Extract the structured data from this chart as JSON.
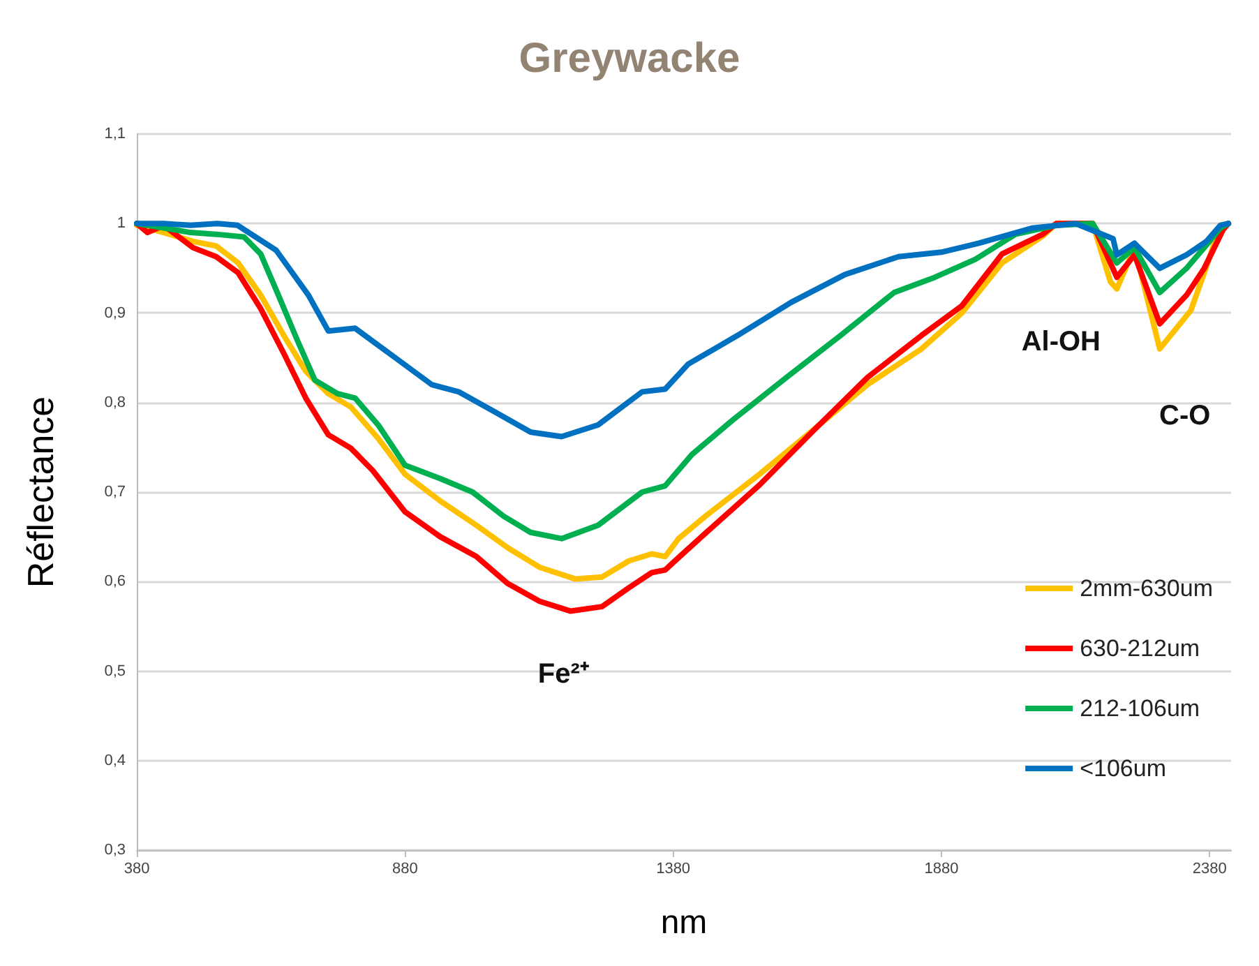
{
  "chart_data": {
    "type": "line",
    "title": "Greywacke",
    "xlabel": "nm",
    "ylabel": "Réflectance",
    "xlim": [
      380,
      2420
    ],
    "xticks": [
      380,
      880,
      1380,
      1880,
      2380
    ],
    "ylim": [
      0.3,
      1.1
    ],
    "yticks": [
      {
        "value": 0.3,
        "label": "0,3"
      },
      {
        "value": 0.4,
        "label": "0,4"
      },
      {
        "value": 0.5,
        "label": "0,5"
      },
      {
        "value": 0.6,
        "label": "0,6"
      },
      {
        "value": 0.7,
        "label": "0,7"
      },
      {
        "value": 0.8,
        "label": "0,8"
      },
      {
        "value": 0.9,
        "label": "0,9"
      },
      {
        "value": 1,
        "label": "1"
      },
      {
        "value": 1.1,
        "label": "1,1"
      }
    ],
    "grid": "y",
    "legend": "bottom right",
    "marker": "none",
    "line_style": "solid",
    "annotations": [
      {
        "text": "Fe²⁺",
        "x": 1189,
        "y": 0.567
      },
      {
        "text": "Al-OH",
        "x": 2207,
        "y": 0.927
      },
      {
        "text": "C-O",
        "x": 2287,
        "y": 0.86
      }
    ],
    "series": [
      {
        "name": "2mm-630um",
        "color": "#ffc000",
        "x": [
          380,
          430,
          485,
          528,
          569,
          611,
          654,
          695,
          737,
          779,
          830,
          880,
          946,
          1013,
          1071,
          1131,
          1197,
          1247,
          1297,
          1340,
          1365,
          1390,
          1440,
          1541,
          1642,
          1742,
          1843,
          1918,
          1993,
          2069,
          2094,
          2162,
          2195,
          2207,
          2240,
          2287,
          2345,
          2370,
          2400,
          2415
        ],
        "values": [
          0.998,
          0.99,
          0.98,
          0.975,
          0.956,
          0.92,
          0.875,
          0.835,
          0.81,
          0.795,
          0.76,
          0.72,
          0.69,
          0.663,
          0.638,
          0.616,
          0.603,
          0.605,
          0.623,
          0.631,
          0.628,
          0.648,
          0.673,
          0.72,
          0.77,
          0.82,
          0.86,
          0.9,
          0.956,
          0.986,
          1.0,
          1.0,
          0.935,
          0.927,
          0.973,
          0.86,
          0.903,
          0.945,
          0.998,
          1.0
        ]
      },
      {
        "name": "630-212um",
        "color": "#ff0000",
        "x": [
          380,
          400,
          430,
          485,
          528,
          569,
          611,
          654,
          695,
          737,
          779,
          820,
          880,
          946,
          1013,
          1071,
          1131,
          1189,
          1247,
          1297,
          1340,
          1365,
          1383,
          1440,
          1541,
          1642,
          1742,
          1843,
          1918,
          1993,
          2069,
          2094,
          2162,
          2207,
          2240,
          2287,
          2337,
          2370,
          2405,
          2415
        ],
        "values": [
          1.0,
          0.99,
          0.998,
          0.973,
          0.963,
          0.945,
          0.905,
          0.855,
          0.805,
          0.764,
          0.749,
          0.724,
          0.678,
          0.65,
          0.628,
          0.598,
          0.578,
          0.567,
          0.572,
          0.593,
          0.61,
          0.613,
          0.623,
          0.654,
          0.708,
          0.769,
          0.828,
          0.875,
          0.908,
          0.966,
          0.988,
          1.0,
          1.0,
          0.94,
          0.965,
          0.888,
          0.92,
          0.95,
          0.993,
          1.0
        ]
      },
      {
        "name": "212-106um",
        "color": "#00b050",
        "x": [
          380,
          430,
          480,
          528,
          580,
          611,
          644,
          679,
          712,
          754,
          787,
          830,
          880,
          946,
          1006,
          1064,
          1114,
          1172,
          1240,
          1322,
          1365,
          1415,
          1490,
          1591,
          1692,
          1792,
          1868,
          1943,
          2018,
          2094,
          2162,
          2207,
          2240,
          2287,
          2337,
          2374,
          2400,
          2415
        ],
        "values": [
          1.0,
          0.995,
          0.99,
          0.988,
          0.985,
          0.966,
          0.92,
          0.87,
          0.825,
          0.81,
          0.805,
          0.775,
          0.73,
          0.715,
          0.7,
          0.673,
          0.655,
          0.648,
          0.663,
          0.7,
          0.707,
          0.742,
          0.78,
          0.828,
          0.875,
          0.923,
          0.94,
          0.96,
          0.988,
          0.998,
          1.0,
          0.956,
          0.973,
          0.923,
          0.95,
          0.976,
          0.995,
          1.0
        ]
      },
      {
        "name": "<106um",
        "color": "#0070c0",
        "x": [
          380,
          430,
          480,
          530,
          568,
          640,
          700,
          737,
          787,
          862,
          930,
          980,
          1046,
          1114,
          1172,
          1240,
          1322,
          1365,
          1408,
          1500,
          1600,
          1700,
          1800,
          1880,
          1950,
          2050,
          2130,
          2200,
          2207,
          2240,
          2287,
          2337,
          2374,
          2400,
          2415
        ],
        "values": [
          1.0,
          1.0,
          0.998,
          1.0,
          0.998,
          0.97,
          0.92,
          0.88,
          0.883,
          0.85,
          0.82,
          0.812,
          0.79,
          0.767,
          0.762,
          0.775,
          0.812,
          0.815,
          0.843,
          0.875,
          0.912,
          0.943,
          0.963,
          0.968,
          0.978,
          0.995,
          1.0,
          0.983,
          0.965,
          0.978,
          0.95,
          0.965,
          0.98,
          0.998,
          1.0
        ]
      }
    ]
  }
}
